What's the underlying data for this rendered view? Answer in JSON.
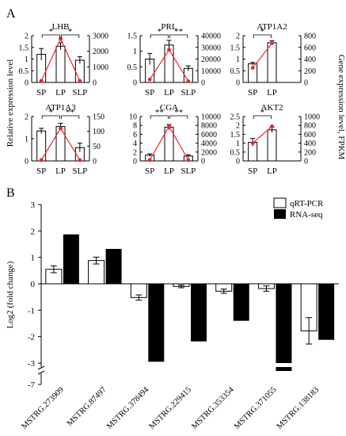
{
  "panel_a": {
    "label": "A",
    "left_axis_label": "Relative expression level",
    "right_axis_label": "Gene expression level, FPKM"
  },
  "panel_b": {
    "label": "B",
    "y_axis_label": "Log2 (fold change)",
    "legend": [
      "qRT-PCR",
      "RNA-seq"
    ]
  },
  "colors": {
    "bar": "#ffffff",
    "bar_stroke": "#000000",
    "line": "#e8262b",
    "rnaseq": "#000000"
  },
  "chart_data": [
    {
      "type": "bar",
      "title": "LHB",
      "categories": [
        "SP",
        "LP",
        "SLP"
      ],
      "values": [
        1.2,
        1.55,
        0.95
      ],
      "errors": [
        0.25,
        0.15,
        0.15
      ],
      "ylim": [
        0,
        2
      ],
      "yticks": [
        0,
        0.5,
        1,
        1.5,
        2
      ],
      "fpkm": [
        100,
        2800,
        100
      ],
      "y2lim": [
        0,
        3000
      ],
      "y2ticks": [
        0,
        1000,
        2000,
        3000
      ],
      "significance": [
        "*",
        "*"
      ]
    },
    {
      "type": "bar",
      "title": "PRL",
      "categories": [
        "SP",
        "LP",
        "SLP"
      ],
      "values": [
        0.75,
        1.2,
        0.45
      ],
      "errors": [
        0.18,
        0.15,
        0.08
      ],
      "ylim": [
        0,
        1.5
      ],
      "yticks": [
        0,
        0.5,
        1,
        1.5
      ],
      "fpkm": [
        2500,
        28000,
        1000
      ],
      "y2lim": [
        0,
        40000
      ],
      "y2ticks": [
        0,
        10000,
        20000,
        30000,
        40000
      ],
      "significance": [
        "*",
        "**"
      ]
    },
    {
      "type": "bar",
      "title": "ATP1A2",
      "categories": [
        "SP",
        "LP"
      ],
      "values": [
        0.8,
        1.7
      ],
      "errors": [
        0.06,
        0.08
      ],
      "ylim": [
        0,
        2
      ],
      "yticks": [
        0,
        0.5,
        1,
        1.5,
        2
      ],
      "fpkm": [
        250,
        670
      ],
      "y2lim": [
        0,
        800
      ],
      "y2ticks": [
        0,
        200,
        400,
        600,
        800
      ],
      "significance": [
        "*"
      ]
    },
    {
      "type": "bar",
      "title": "ATP1A3",
      "categories": [
        "SP",
        "LP",
        "SLP"
      ],
      "values": [
        1.35,
        1.55,
        0.6
      ],
      "errors": [
        0.12,
        0.15,
        0.2
      ],
      "ylim": [
        0,
        2
      ],
      "yticks": [
        0,
        1,
        2
      ],
      "fpkm": [
        3,
        110,
        3
      ],
      "y2lim": [
        0,
        150
      ],
      "y2ticks": [
        0,
        50,
        100,
        150
      ],
      "significance": [
        "*",
        "**"
      ]
    },
    {
      "type": "bar",
      "title": "CGA",
      "categories": [
        "SP",
        "LP",
        "SLP"
      ],
      "values": [
        1.3,
        7.6,
        1.1
      ],
      "errors": [
        0.3,
        0.6,
        0.3
      ],
      "ylim": [
        0,
        10
      ],
      "yticks": [
        0,
        2,
        4,
        6,
        8,
        10
      ],
      "fpkm": [
        200,
        7800,
        200
      ],
      "y2lim": [
        0,
        10000
      ],
      "y2ticks": [
        0,
        2000,
        4000,
        6000,
        8000,
        10000
      ],
      "significance": [
        "**",
        "**"
      ]
    },
    {
      "type": "bar",
      "title": "AKT2",
      "categories": [
        "SP",
        "LP"
      ],
      "values": [
        1.05,
        1.75
      ],
      "errors": [
        0.22,
        0.15
      ],
      "ylim": [
        0,
        2.5
      ],
      "yticks": [
        0,
        0.5,
        1,
        1.5,
        2,
        2.5
      ],
      "fpkm": [
        400,
        780
      ],
      "y2lim": [
        0,
        1000
      ],
      "y2ticks": [
        0,
        200,
        400,
        600,
        800,
        1000
      ],
      "significance": [
        "*"
      ]
    },
    {
      "type": "bar",
      "categories": [
        "MSTRG.273909",
        "MSTRG.87497",
        "MSTRG.378494",
        "MSTRG.229415",
        "MSTRG.353354",
        "MSTRG.371055",
        "MSTRG.138183"
      ],
      "ylabel": "Log2 (fold change)",
      "ylim": [
        -7,
        3
      ],
      "yticks_upper": [
        -3,
        -2,
        -1,
        0,
        1,
        2,
        3
      ],
      "yticks_lower": [
        -7
      ],
      "axis_break": [
        -3.3,
        -6.7
      ],
      "series": [
        {
          "name": "qRT-PCR",
          "values": [
            0.55,
            0.88,
            -0.52,
            -0.1,
            -0.28,
            -0.18,
            -1.78
          ],
          "errors": [
            0.13,
            0.13,
            0.1,
            0.05,
            0.08,
            0.1,
            0.5
          ]
        },
        {
          "name": "RNA-seq",
          "values": [
            1.87,
            1.32,
            -2.95,
            -2.18,
            -1.4,
            -3.3,
            -2.12
          ]
        }
      ]
    }
  ]
}
